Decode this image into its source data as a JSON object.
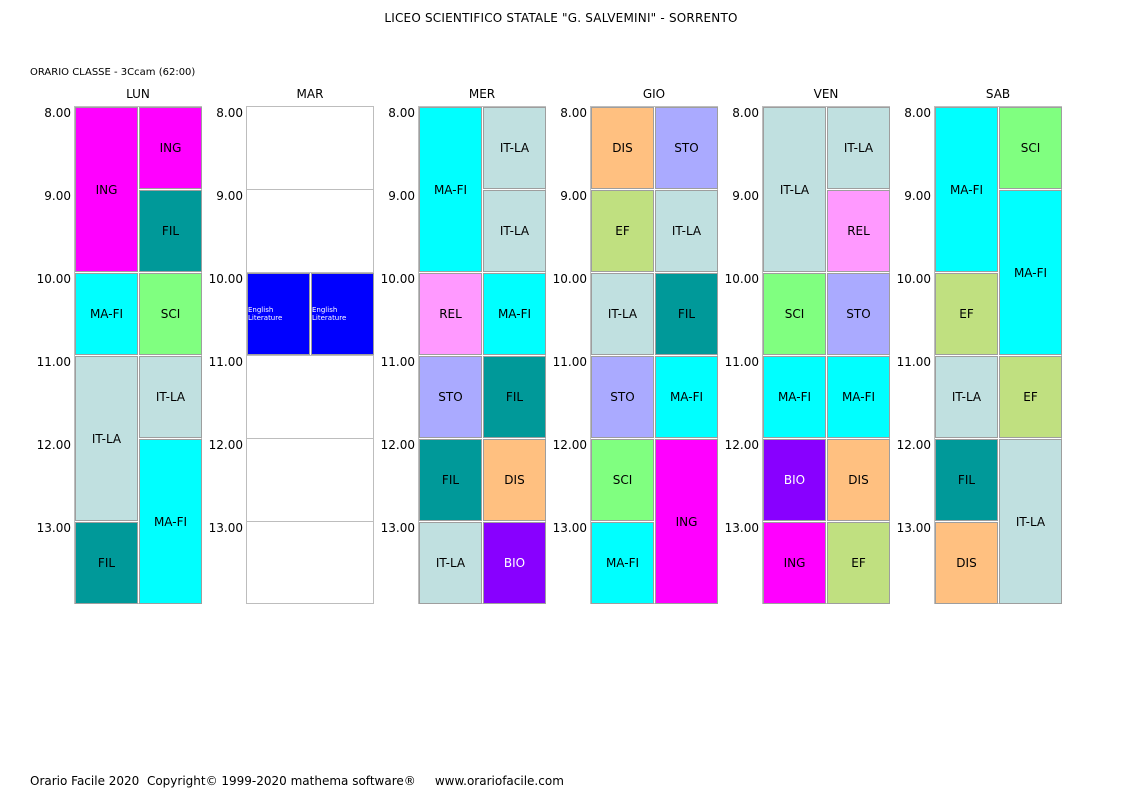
{
  "header": {
    "school": "LICEO SCIENTIFICO STATALE \"G. SALVEMINI\" - SORRENTO",
    "class_label": "ORARIO CLASSE   -   3Ccam  (62:00)"
  },
  "times": [
    "8.00",
    "9.00",
    "10.00",
    "11.00",
    "12.00",
    "13.00"
  ],
  "colors": {
    "ING": "#ff00ff",
    "FIL": "#009999",
    "MA-FI": "#00ffff",
    "SCI": "#80ff80",
    "IT-LA": "#c0e0e0",
    "REL": "#ff99ff",
    "STO": "#aaaaff",
    "DIS": "#ffc080",
    "BIO": "#8800ff",
    "EF": "#c0e080",
    "English Literature": "#0000ff"
  },
  "days": [
    {
      "name": "LUN",
      "cells": [
        {
          "label": "ING",
          "col": 0,
          "start": 0,
          "span": 2
        },
        {
          "label": "ING",
          "col": 1,
          "start": 0,
          "span": 1
        },
        {
          "label": "FIL",
          "col": 1,
          "start": 1,
          "span": 1
        },
        {
          "label": "MA-FI",
          "col": 0,
          "start": 2,
          "span": 1
        },
        {
          "label": "SCI",
          "col": 1,
          "start": 2,
          "span": 1
        },
        {
          "label": "IT-LA",
          "col": 0,
          "start": 3,
          "span": 2
        },
        {
          "label": "IT-LA",
          "col": 1,
          "start": 3,
          "span": 1
        },
        {
          "label": "MA-FI",
          "col": 1,
          "start": 4,
          "span": 2
        },
        {
          "label": "FIL",
          "col": 0,
          "start": 5,
          "span": 1
        }
      ]
    },
    {
      "name": "MAR",
      "cells": [
        {
          "label": "English Literature",
          "col": 0,
          "start": 2,
          "span": 1
        },
        {
          "label": "English Literature",
          "col": 1,
          "start": 2,
          "span": 1
        }
      ]
    },
    {
      "name": "MER",
      "cells": [
        {
          "label": "MA-FI",
          "col": 0,
          "start": 0,
          "span": 2
        },
        {
          "label": "IT-LA",
          "col": 1,
          "start": 0,
          "span": 1
        },
        {
          "label": "IT-LA",
          "col": 1,
          "start": 1,
          "span": 1
        },
        {
          "label": "REL",
          "col": 0,
          "start": 2,
          "span": 1
        },
        {
          "label": "MA-FI",
          "col": 1,
          "start": 2,
          "span": 1
        },
        {
          "label": "STO",
          "col": 0,
          "start": 3,
          "span": 1
        },
        {
          "label": "FIL",
          "col": 1,
          "start": 3,
          "span": 1
        },
        {
          "label": "FIL",
          "col": 0,
          "start": 4,
          "span": 1
        },
        {
          "label": "DIS",
          "col": 1,
          "start": 4,
          "span": 1
        },
        {
          "label": "IT-LA",
          "col": 0,
          "start": 5,
          "span": 1
        },
        {
          "label": "BIO",
          "col": 1,
          "start": 5,
          "span": 1
        }
      ]
    },
    {
      "name": "GIO",
      "cells": [
        {
          "label": "DIS",
          "col": 0,
          "start": 0,
          "span": 1
        },
        {
          "label": "STO",
          "col": 1,
          "start": 0,
          "span": 1
        },
        {
          "label": "EF",
          "col": 0,
          "start": 1,
          "span": 1
        },
        {
          "label": "IT-LA",
          "col": 1,
          "start": 1,
          "span": 1
        },
        {
          "label": "IT-LA",
          "col": 0,
          "start": 2,
          "span": 1
        },
        {
          "label": "FIL",
          "col": 1,
          "start": 2,
          "span": 1
        },
        {
          "label": "STO",
          "col": 0,
          "start": 3,
          "span": 1
        },
        {
          "label": "MA-FI",
          "col": 1,
          "start": 3,
          "span": 1
        },
        {
          "label": "SCI",
          "col": 0,
          "start": 4,
          "span": 1
        },
        {
          "label": "ING",
          "col": 1,
          "start": 4,
          "span": 2
        },
        {
          "label": "MA-FI",
          "col": 0,
          "start": 5,
          "span": 1
        }
      ]
    },
    {
      "name": "VEN",
      "cells": [
        {
          "label": "IT-LA",
          "col": 0,
          "start": 0,
          "span": 2
        },
        {
          "label": "IT-LA",
          "col": 1,
          "start": 0,
          "span": 1
        },
        {
          "label": "REL",
          "col": 1,
          "start": 1,
          "span": 1
        },
        {
          "label": "SCI",
          "col": 0,
          "start": 2,
          "span": 1
        },
        {
          "label": "STO",
          "col": 1,
          "start": 2,
          "span": 1
        },
        {
          "label": "MA-FI",
          "col": 0,
          "start": 3,
          "span": 1
        },
        {
          "label": "MA-FI",
          "col": 1,
          "start": 3,
          "span": 1
        },
        {
          "label": "BIO",
          "col": 0,
          "start": 4,
          "span": 1
        },
        {
          "label": "DIS",
          "col": 1,
          "start": 4,
          "span": 1
        },
        {
          "label": "ING",
          "col": 0,
          "start": 5,
          "span": 1
        },
        {
          "label": "EF",
          "col": 1,
          "start": 5,
          "span": 1
        }
      ]
    },
    {
      "name": "SAB",
      "cells": [
        {
          "label": "MA-FI",
          "col": 0,
          "start": 0,
          "span": 2
        },
        {
          "label": "SCI",
          "col": 1,
          "start": 0,
          "span": 1
        },
        {
          "label": "MA-FI",
          "col": 1,
          "start": 1,
          "span": 2
        },
        {
          "label": "EF",
          "col": 0,
          "start": 2,
          "span": 1
        },
        {
          "label": "IT-LA",
          "col": 0,
          "start": 3,
          "span": 1
        },
        {
          "label": "EF",
          "col": 1,
          "start": 3,
          "span": 1
        },
        {
          "label": "FIL",
          "col": 0,
          "start": 4,
          "span": 1
        },
        {
          "label": "IT-LA",
          "col": 1,
          "start": 4,
          "span": 2
        },
        {
          "label": "DIS",
          "col": 0,
          "start": 5,
          "span": 1
        }
      ]
    }
  ],
  "footer": {
    "text": "Orario Facile 2020  Copyright© 1999-2020 mathema software®     www.orariofacile.com"
  }
}
